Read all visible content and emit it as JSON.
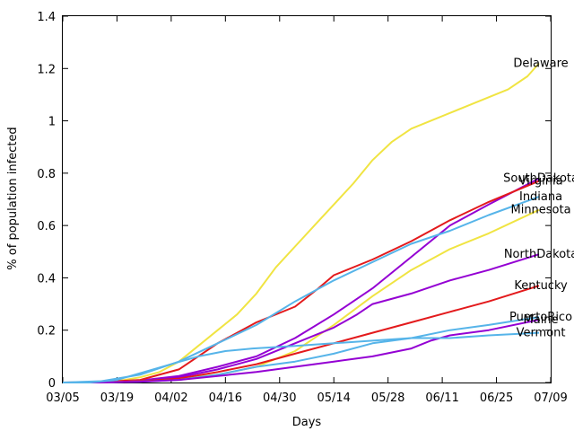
{
  "chart_data": {
    "type": "line",
    "xlabel": "Days",
    "ylabel": "% of population infected",
    "title": "",
    "x_ticks": [
      "03/05",
      "03/19",
      "04/02",
      "04/16",
      "04/30",
      "05/14",
      "05/28",
      "06/11",
      "06/25",
      "07/09"
    ],
    "x_range": [
      "03/05",
      "07/09"
    ],
    "ylim": [
      0,
      1.4
    ],
    "y_ticks": [
      "0",
      "0.2",
      "0.4",
      "0.6",
      "0.8",
      "1",
      "1.2",
      "1.4"
    ],
    "grid": false,
    "legend": "inline labels at line ends",
    "series": [
      {
        "name": "Delaware",
        "color": "#f0e442",
        "points": [
          [
            "03/05",
            0
          ],
          [
            "03/10",
            0
          ],
          [
            "03/15",
            0.003
          ],
          [
            "03/20",
            0.008
          ],
          [
            "03/25",
            0.02
          ],
          [
            "03/30",
            0.04
          ],
          [
            "04/04",
            0.08
          ],
          [
            "04/09",
            0.14
          ],
          [
            "04/14",
            0.2
          ],
          [
            "04/19",
            0.26
          ],
          [
            "04/24",
            0.34
          ],
          [
            "04/29",
            0.44
          ],
          [
            "05/04",
            0.52
          ],
          [
            "05/09",
            0.6
          ],
          [
            "05/14",
            0.68
          ],
          [
            "05/19",
            0.76
          ],
          [
            "05/24",
            0.85
          ],
          [
            "05/29",
            0.92
          ],
          [
            "06/03",
            0.97
          ],
          [
            "06/08",
            1.0
          ],
          [
            "06/13",
            1.03
          ],
          [
            "06/18",
            1.06
          ],
          [
            "06/23",
            1.09
          ],
          [
            "06/28",
            1.12
          ],
          [
            "07/03",
            1.17
          ],
          [
            "07/06",
            1.22
          ]
        ]
      },
      {
        "name": "SouthDakota",
        "color": "#9400d3",
        "points": [
          [
            "03/05",
            0
          ],
          [
            "03/15",
            0
          ],
          [
            "03/25",
            0.008
          ],
          [
            "04/04",
            0.025
          ],
          [
            "04/14",
            0.06
          ],
          [
            "04/24",
            0.1
          ],
          [
            "05/04",
            0.17
          ],
          [
            "05/14",
            0.26
          ],
          [
            "05/24",
            0.36
          ],
          [
            "06/03",
            0.48
          ],
          [
            "06/13",
            0.6
          ],
          [
            "06/23",
            0.68
          ],
          [
            "07/06",
            0.78
          ]
        ]
      },
      {
        "name": "Virginia",
        "color": "#e31a1c",
        "points": [
          [
            "03/05",
            0
          ],
          [
            "03/15",
            0.002
          ],
          [
            "03/25",
            0.01
          ],
          [
            "04/04",
            0.05
          ],
          [
            "04/14",
            0.15
          ],
          [
            "04/24",
            0.23
          ],
          [
            "05/04",
            0.29
          ],
          [
            "05/10",
            0.36
          ],
          [
            "05/14",
            0.41
          ],
          [
            "05/24",
            0.47
          ],
          [
            "06/03",
            0.54
          ],
          [
            "06/13",
            0.62
          ],
          [
            "06/23",
            0.69
          ],
          [
            "07/06",
            0.77
          ]
        ]
      },
      {
        "name": "Indiana",
        "color": "#56b4e9",
        "points": [
          [
            "03/05",
            0
          ],
          [
            "03/15",
            0.005
          ],
          [
            "03/25",
            0.03
          ],
          [
            "04/04",
            0.08
          ],
          [
            "04/14",
            0.15
          ],
          [
            "04/24",
            0.22
          ],
          [
            "05/04",
            0.31
          ],
          [
            "05/14",
            0.39
          ],
          [
            "05/24",
            0.46
          ],
          [
            "06/03",
            0.53
          ],
          [
            "06/13",
            0.58
          ],
          [
            "06/23",
            0.64
          ],
          [
            "07/06",
            0.71
          ]
        ]
      },
      {
        "name": "Minnesota",
        "color": "#f0e442",
        "points": [
          [
            "03/05",
            0
          ],
          [
            "03/15",
            0
          ],
          [
            "03/25",
            0.005
          ],
          [
            "04/04",
            0.015
          ],
          [
            "04/14",
            0.03
          ],
          [
            "04/24",
            0.06
          ],
          [
            "05/04",
            0.12
          ],
          [
            "05/14",
            0.22
          ],
          [
            "05/24",
            0.33
          ],
          [
            "06/03",
            0.43
          ],
          [
            "06/13",
            0.51
          ],
          [
            "06/23",
            0.57
          ],
          [
            "07/06",
            0.66
          ]
        ]
      },
      {
        "name": "NorthDakota",
        "color": "#9400d3",
        "points": [
          [
            "03/05",
            0
          ],
          [
            "03/15",
            0
          ],
          [
            "03/25",
            0.005
          ],
          [
            "04/04",
            0.02
          ],
          [
            "04/14",
            0.05
          ],
          [
            "04/24",
            0.09
          ],
          [
            "05/04",
            0.15
          ],
          [
            "05/14",
            0.21
          ],
          [
            "05/20",
            0.26
          ],
          [
            "05/24",
            0.3
          ],
          [
            "06/03",
            0.34
          ],
          [
            "06/13",
            0.39
          ],
          [
            "06/23",
            0.43
          ],
          [
            "07/06",
            0.49
          ]
        ]
      },
      {
        "name": "Kentucky",
        "color": "#e31a1c",
        "points": [
          [
            "03/05",
            0
          ],
          [
            "03/15",
            0
          ],
          [
            "03/25",
            0.004
          ],
          [
            "04/04",
            0.015
          ],
          [
            "04/14",
            0.04
          ],
          [
            "04/24",
            0.07
          ],
          [
            "05/04",
            0.11
          ],
          [
            "05/14",
            0.15
          ],
          [
            "05/24",
            0.19
          ],
          [
            "06/03",
            0.23
          ],
          [
            "06/13",
            0.27
          ],
          [
            "06/23",
            0.31
          ],
          [
            "07/06",
            0.37
          ]
        ]
      },
      {
        "name": "PuertoRico",
        "color": "#56b4e9",
        "points": [
          [
            "03/05",
            0
          ],
          [
            "03/15",
            0
          ],
          [
            "03/25",
            0.003
          ],
          [
            "04/04",
            0.01
          ],
          [
            "04/14",
            0.03
          ],
          [
            "04/24",
            0.06
          ],
          [
            "05/04",
            0.08
          ],
          [
            "05/14",
            0.11
          ],
          [
            "05/24",
            0.15
          ],
          [
            "06/03",
            0.17
          ],
          [
            "06/13",
            0.2
          ],
          [
            "06/23",
            0.22
          ],
          [
            "07/06",
            0.25
          ]
        ]
      },
      {
        "name": "Maine",
        "color": "#9400d3",
        "points": [
          [
            "03/05",
            0
          ],
          [
            "03/15",
            0
          ],
          [
            "03/25",
            0.003
          ],
          [
            "04/04",
            0.01
          ],
          [
            "04/14",
            0.025
          ],
          [
            "04/24",
            0.04
          ],
          [
            "05/04",
            0.06
          ],
          [
            "05/14",
            0.08
          ],
          [
            "05/24",
            0.1
          ],
          [
            "06/03",
            0.13
          ],
          [
            "06/08",
            0.16
          ],
          [
            "06/13",
            0.18
          ],
          [
            "06/23",
            0.2
          ],
          [
            "07/06",
            0.24
          ]
        ]
      },
      {
        "name": "Vermont",
        "color": "#56b4e9",
        "points": [
          [
            "03/05",
            0
          ],
          [
            "03/12",
            0
          ],
          [
            "03/19",
            0.01
          ],
          [
            "03/26",
            0.04
          ],
          [
            "04/02",
            0.07
          ],
          [
            "04/09",
            0.1
          ],
          [
            "04/16",
            0.12
          ],
          [
            "04/23",
            0.13
          ],
          [
            "05/04",
            0.14
          ],
          [
            "05/14",
            0.15
          ],
          [
            "05/24",
            0.16
          ],
          [
            "06/03",
            0.17
          ],
          [
            "06/13",
            0.17
          ],
          [
            "06/23",
            0.18
          ],
          [
            "07/06",
            0.19
          ]
        ]
      }
    ]
  }
}
